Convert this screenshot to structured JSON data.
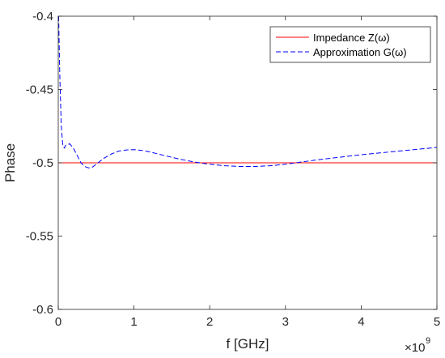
{
  "chart_data": {
    "type": "line",
    "xlabel": "f [GHz]",
    "ylabel": "Phase",
    "xlim": [
      0,
      5
    ],
    "ylim": [
      -0.6,
      -0.4
    ],
    "x_multiplier_label": "×10",
    "x_multiplier_exponent": "9",
    "xticks": [
      0,
      1,
      2,
      3,
      4,
      5
    ],
    "yticks": [
      -0.6,
      -0.55,
      -0.5,
      -0.45,
      -0.4
    ],
    "xtick_labels": [
      "0",
      "1",
      "2",
      "3",
      "4",
      "5"
    ],
    "ytick_labels": [
      "-0.6",
      "-0.55",
      "-0.5",
      "-0.45",
      "-0.4"
    ],
    "grid": false,
    "legend_position": "top-right",
    "series": [
      {
        "name": "Impedance Z(ω)",
        "color": "#ff0000",
        "dash": "solid",
        "x": [
          0,
          5
        ],
        "y": [
          -0.5,
          -0.5
        ]
      },
      {
        "name": "Approximation G(ω)",
        "color": "#0000ff",
        "dash": "dashed",
        "x": [
          0.005,
          0.02,
          0.04,
          0.06,
          0.08,
          0.1,
          0.15,
          0.2,
          0.25,
          0.3,
          0.35,
          0.4,
          0.45,
          0.5,
          0.6,
          0.7,
          0.8,
          0.9,
          1.0,
          1.1,
          1.2,
          1.4,
          1.6,
          1.8,
          2.0,
          2.2,
          2.4,
          2.6,
          2.8,
          3.0,
          3.2,
          3.5,
          4.0,
          4.5,
          5.0
        ],
        "y": [
          -0.4,
          -0.44,
          -0.475,
          -0.488,
          -0.49,
          -0.488,
          -0.487,
          -0.49,
          -0.495,
          -0.5,
          -0.5025,
          -0.5035,
          -0.503,
          -0.501,
          -0.497,
          -0.494,
          -0.492,
          -0.4912,
          -0.491,
          -0.4915,
          -0.4925,
          -0.495,
          -0.4975,
          -0.4995,
          -0.501,
          -0.502,
          -0.5025,
          -0.5025,
          -0.502,
          -0.501,
          -0.4995,
          -0.4975,
          -0.4945,
          -0.492,
          -0.4895
        ]
      }
    ]
  }
}
